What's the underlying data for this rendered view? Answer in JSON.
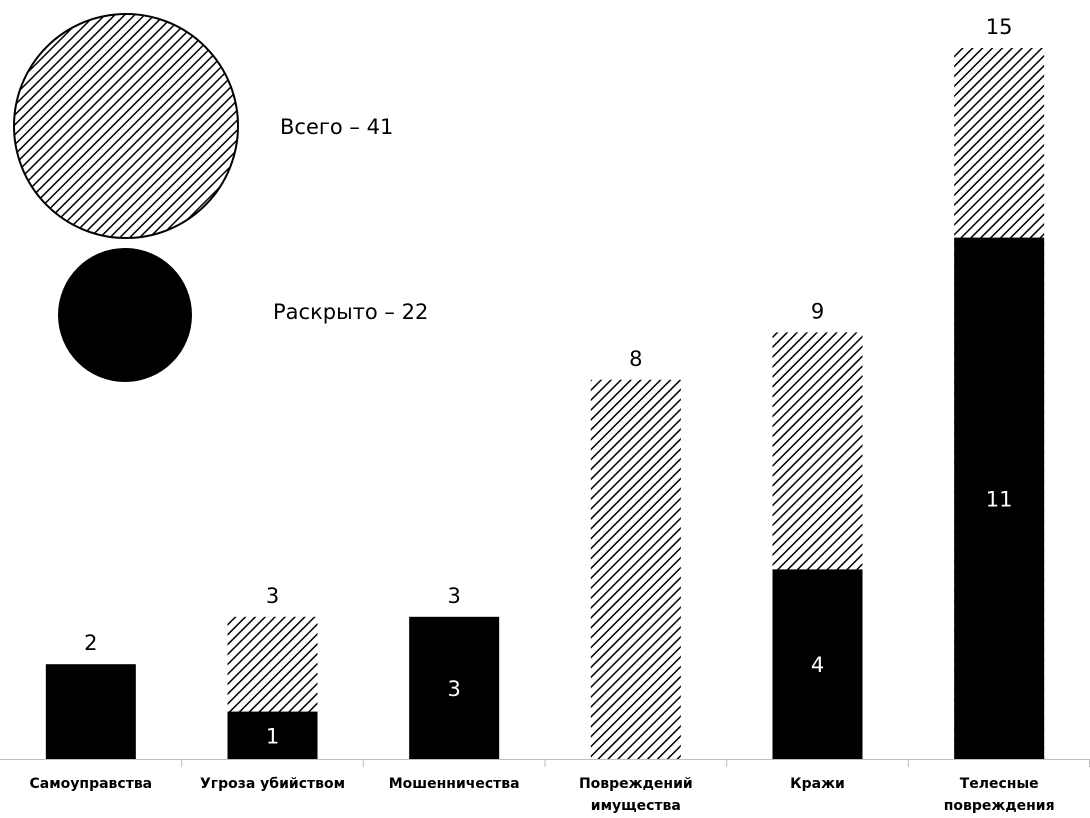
{
  "chart_data": {
    "type": "bar",
    "stacked": true,
    "categories": [
      [
        "Самоуправства"
      ],
      [
        "Угроза убийством"
      ],
      [
        "Мошенничества"
      ],
      [
        "Повреждений",
        "имущества"
      ],
      [
        "Кражи"
      ],
      [
        "Телесные",
        "повреждения"
      ]
    ],
    "totals": [
      2,
      3,
      3,
      8,
      9,
      15
    ],
    "solved": [
      2,
      1,
      3,
      0,
      4,
      11
    ],
    "inner_labels": [
      "",
      "1",
      "3",
      "",
      "4",
      "11"
    ],
    "total_labels": [
      "2",
      "3",
      "3",
      "8",
      "9",
      "15"
    ],
    "ylim": [
      0,
      15
    ],
    "grid": false,
    "legend_position": "top-left",
    "series": [
      {
        "name": "Всего – 41",
        "fill": "hatched",
        "color": "#000000"
      },
      {
        "name": "Раскрыто – 22",
        "fill": "solid",
        "color": "#000000"
      }
    ]
  }
}
